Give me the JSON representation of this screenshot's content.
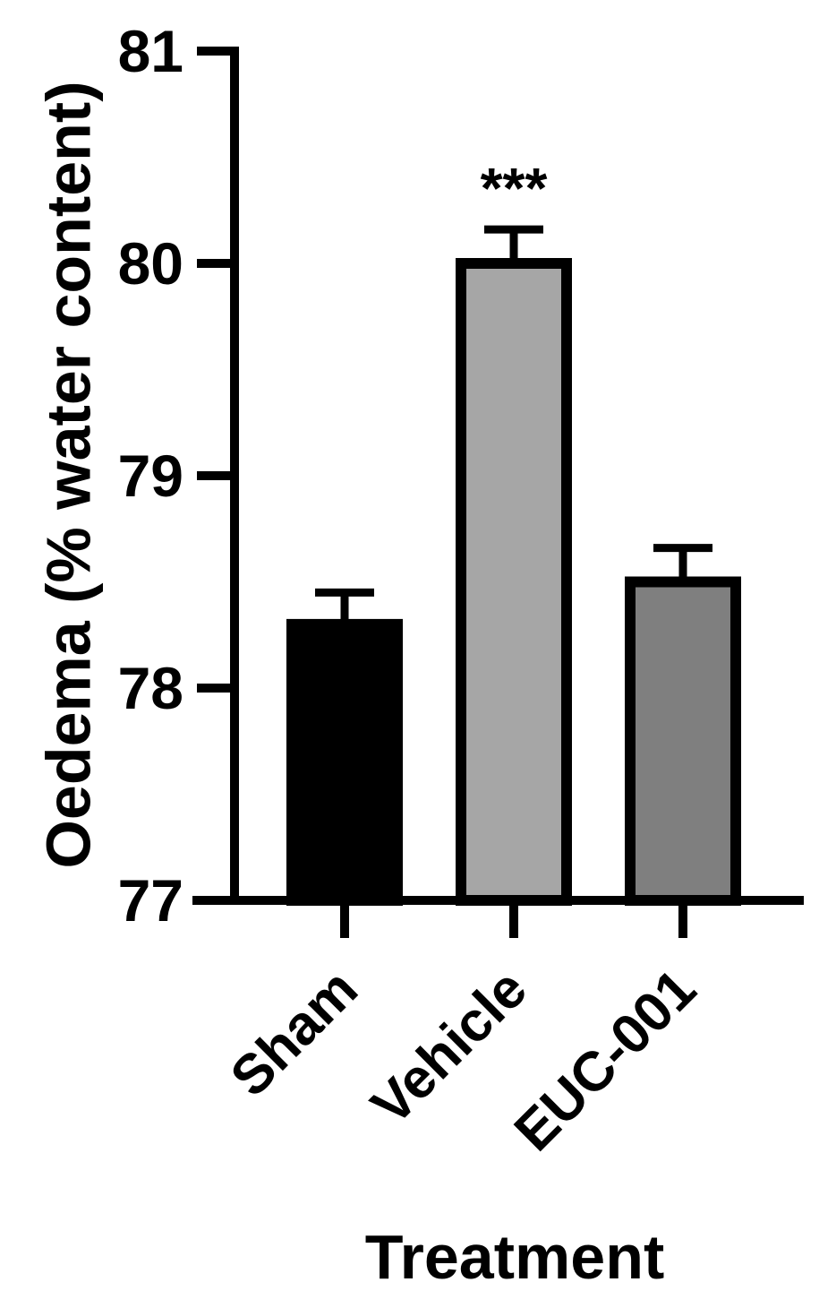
{
  "chart_data": {
    "type": "bar",
    "title": "",
    "xlabel": "Treatment",
    "ylabel": "Oedema (% water content)",
    "ylim": [
      77,
      81
    ],
    "yticks": [
      "77",
      "78",
      "79",
      "80",
      "81"
    ],
    "categories": [
      "Sham",
      "Vehicle",
      "EUC-001"
    ],
    "values": [
      78.3,
      80.0,
      78.5
    ],
    "errors": [
      0.15,
      0.16,
      0.16
    ],
    "significance": [
      "",
      "***",
      ""
    ],
    "bar_colors": [
      "#000000",
      "#a6a6a6",
      "#7f7f7f"
    ],
    "grid": false,
    "legend": "none"
  }
}
